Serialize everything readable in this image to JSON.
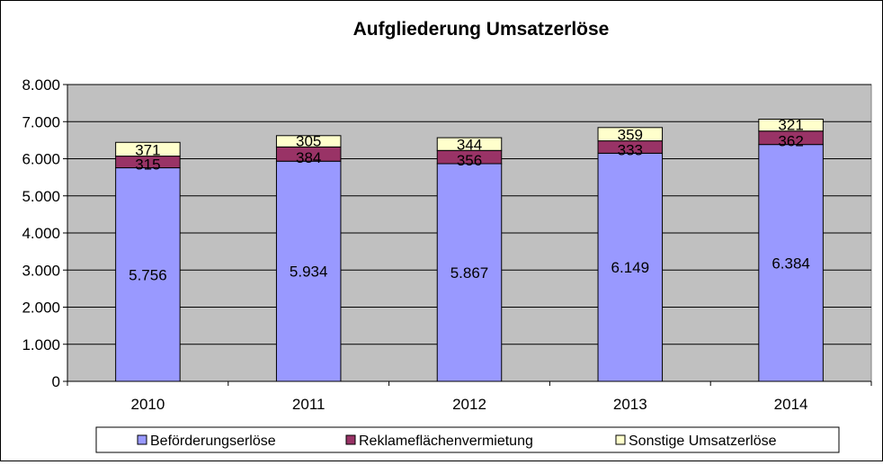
{
  "chart_data": {
    "type": "bar",
    "stacked": true,
    "title": "Aufgliederung Umsatzerlöse",
    "xlabel": "",
    "ylabel": "",
    "categories": [
      "2010",
      "2011",
      "2012",
      "2013",
      "2014"
    ],
    "series": [
      {
        "name": "Beförderungserlöse",
        "values": [
          5756,
          5934,
          5867,
          6149,
          6384
        ],
        "labels": [
          "5.756",
          "5.934",
          "5.867",
          "6.149",
          "6.384"
        ],
        "color": "#9999ff"
      },
      {
        "name": "Reklameflächenvermietung",
        "values": [
          315,
          384,
          356,
          333,
          362
        ],
        "labels": [
          "315",
          "384",
          "356",
          "333",
          "362"
        ],
        "color": "#993366"
      },
      {
        "name": "Sonstige Umsatzerlöse",
        "values": [
          371,
          305,
          344,
          359,
          321
        ],
        "labels": [
          "371",
          "305",
          "344",
          "359",
          "321"
        ],
        "color": "#ffffcc"
      }
    ],
    "ylim": [
      0,
      8000
    ],
    "yticks": [
      0,
      1000,
      2000,
      3000,
      4000,
      5000,
      6000,
      7000,
      8000
    ],
    "ytick_labels": [
      "0",
      "1.000",
      "2.000",
      "3.000",
      "4.000",
      "5.000",
      "6.000",
      "7.000",
      "8.000"
    ],
    "grid": true,
    "plot_background": "#c0c0c0",
    "legend_position": "bottom"
  }
}
